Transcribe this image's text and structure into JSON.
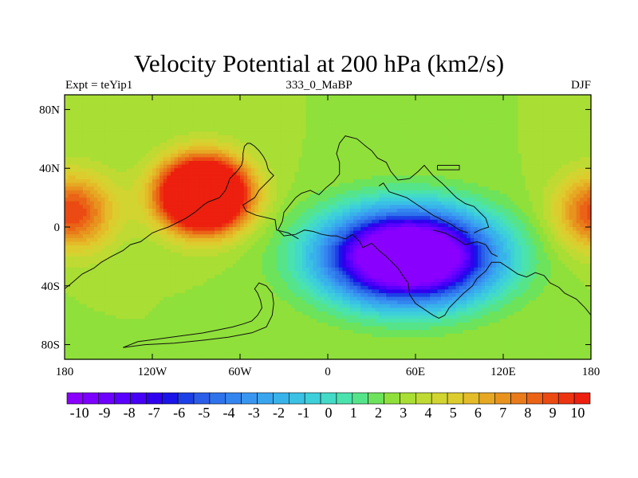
{
  "chart_data": {
    "type": "heatmap",
    "title": "Velocity Potential at 200 hPa (km2/s)",
    "left_string": "Expt = teYip1",
    "center_string": "333_0_MaBP",
    "right_string": "DJF",
    "xlim": [
      -180,
      180
    ],
    "ylim": [
      -90,
      90
    ],
    "x_ticks": [
      -180,
      -120,
      -60,
      0,
      60,
      120,
      180
    ],
    "x_tick_labels": [
      "180",
      "120W",
      "60W",
      "0",
      "60E",
      "120E",
      "180"
    ],
    "y_ticks": [
      80,
      40,
      0,
      -40,
      -80
    ],
    "y_tick_labels": [
      "80N",
      "40N",
      "0",
      "40S",
      "80S"
    ],
    "colorbar": {
      "min": -10.5,
      "max": 10.5,
      "step": 0.5,
      "labels": [
        "-10",
        "-9",
        "-8",
        "-7",
        "-6",
        "-5",
        "-4",
        "-3",
        "-2",
        "-1",
        "0",
        "1",
        "2",
        "3",
        "4",
        "5",
        "6",
        "7",
        "8",
        "9",
        "10"
      ],
      "colors": [
        "#8a00ff",
        "#7c00ff",
        "#6d00ff",
        "#5a00ff",
        "#4600f5",
        "#3000ee",
        "#1a14e8",
        "#1c3fe6",
        "#2b5ee8",
        "#2f73ec",
        "#3385ef",
        "#3996f0",
        "#39a5ef",
        "#38b3ea",
        "#3ac1e4",
        "#3dcfda",
        "#43dac8",
        "#4be3ad",
        "#56e48a",
        "#6ce35a",
        "#8fe03a",
        "#a9de34",
        "#bfda33",
        "#d2d431",
        "#ddcc2e",
        "#e4bb29",
        "#e6a823",
        "#e8931e",
        "#e97b1a",
        "#ea6316",
        "#eb4a12",
        "#ec3410",
        "#ed1f0e"
      ]
    },
    "fields": [
      {
        "name": "upper-tropospheric convergence maximum",
        "lon": -85,
        "lat": 22,
        "sigma_lon": 28,
        "sigma_lat": 23,
        "amplitude": 15
      },
      {
        "name": "upper-tropospheric divergence maximum",
        "lon": 55,
        "lat": -20,
        "sigma_lon": 55,
        "sigma_lat": 30,
        "amplitude": -15
      },
      {
        "name": "central pacific convergence lobe",
        "lon": -175,
        "lat": 10,
        "sigma_lon": 28,
        "sigma_lat": 25,
        "amplitude": 5
      }
    ],
    "coastlines": [
      {
        "name": "south america outline",
        "points": [
          [
            -20,
            -8
          ],
          [
            -27,
            -4
          ],
          [
            -35,
            -2
          ],
          [
            -36,
            5
          ],
          [
            -49,
            8
          ],
          [
            -56,
            11
          ],
          [
            -58,
            15
          ],
          [
            -50,
            20
          ],
          [
            -47,
            25
          ],
          [
            -40,
            32
          ],
          [
            -37,
            35
          ],
          [
            -40,
            38
          ],
          [
            -41,
            40
          ],
          [
            -42,
            44
          ],
          [
            -44,
            48
          ],
          [
            -47,
            52
          ],
          [
            -50,
            55
          ],
          [
            -53,
            57
          ],
          [
            -55,
            57
          ],
          [
            -57,
            55
          ],
          [
            -58,
            50
          ],
          [
            -58,
            46
          ],
          [
            -59,
            42
          ],
          [
            -62,
            38
          ],
          [
            -65,
            35
          ],
          [
            -67,
            33
          ],
          [
            -68,
            30
          ],
          [
            -70,
            25
          ],
          [
            -74,
            20
          ],
          [
            -82,
            17
          ],
          [
            -85,
            15
          ],
          [
            -91,
            10
          ],
          [
            -97,
            6
          ],
          [
            -103,
            3
          ],
          [
            -109,
            0
          ],
          [
            -115,
            -2
          ],
          [
            -120,
            -4
          ],
          [
            -124,
            -7
          ],
          [
            -128,
            -10
          ],
          [
            -135,
            -12
          ],
          [
            -140,
            -16
          ],
          [
            -148,
            -20
          ],
          [
            -155,
            -24
          ],
          [
            -160,
            -28
          ],
          [
            -168,
            -32
          ],
          [
            -175,
            -38
          ],
          [
            -180,
            -42
          ]
        ]
      },
      {
        "name": "antarctic shelf outline",
        "points": [
          [
            -140,
            -82
          ],
          [
            -130,
            -78
          ],
          [
            -115,
            -76
          ],
          [
            -100,
            -74
          ],
          [
            -85,
            -72
          ],
          [
            -75,
            -70
          ],
          [
            -65,
            -68
          ],
          [
            -58,
            -66
          ],
          [
            -52,
            -64
          ],
          [
            -48,
            -60
          ],
          [
            -45,
            -55
          ],
          [
            -46,
            -50
          ],
          [
            -48,
            -45
          ],
          [
            -50,
            -42
          ],
          [
            -47,
            -38
          ],
          [
            -42,
            -40
          ],
          [
            -38,
            -45
          ],
          [
            -37,
            -52
          ],
          [
            -38,
            -60
          ],
          [
            -42,
            -68
          ],
          [
            -52,
            -72
          ],
          [
            -68,
            -75
          ],
          [
            -85,
            -77
          ],
          [
            -105,
            -79
          ],
          [
            -125,
            -80
          ],
          [
            -140,
            -82
          ]
        ]
      },
      {
        "name": "africa outline",
        "points": [
          [
            -34,
            -2
          ],
          [
            -30,
            -6
          ],
          [
            -22,
            -5
          ],
          [
            -16,
            -2
          ],
          [
            -10,
            -3
          ],
          [
            -4,
            -5
          ],
          [
            2,
            -6
          ],
          [
            6,
            -6
          ],
          [
            12,
            -8
          ],
          [
            17,
            -5
          ],
          [
            22,
            -10
          ],
          [
            24,
            -14
          ],
          [
            30,
            -11
          ],
          [
            35,
            -16
          ],
          [
            40,
            -20
          ],
          [
            44,
            -24
          ],
          [
            48,
            -28
          ],
          [
            52,
            -34
          ],
          [
            55,
            -38
          ],
          [
            56,
            -46
          ],
          [
            60,
            -52
          ],
          [
            66,
            -56
          ],
          [
            72,
            -60
          ],
          [
            76,
            -62
          ],
          [
            80,
            -60
          ],
          [
            83,
            -55
          ],
          [
            88,
            -50
          ],
          [
            93,
            -45
          ],
          [
            99,
            -40
          ],
          [
            102,
            -35
          ],
          [
            108,
            -30
          ],
          [
            112,
            -24
          ],
          [
            118,
            -24
          ],
          [
            124,
            -28
          ],
          [
            130,
            -32
          ],
          [
            136,
            -34
          ],
          [
            142,
            -31
          ],
          [
            148,
            -33
          ],
          [
            152,
            -38
          ],
          [
            158,
            -41
          ],
          [
            162,
            -45
          ],
          [
            166,
            -47
          ],
          [
            170,
            -49
          ],
          [
            176,
            -55
          ],
          [
            180,
            -60
          ]
        ]
      },
      {
        "name": "europe asia outline",
        "points": [
          [
            -34,
            -2
          ],
          [
            -31,
            4
          ],
          [
            -30,
            10
          ],
          [
            -26,
            15
          ],
          [
            -22,
            20
          ],
          [
            -18,
            23
          ],
          [
            -12,
            25
          ],
          [
            -6,
            22
          ],
          [
            -1,
            27
          ],
          [
            4,
            31
          ],
          [
            8,
            36
          ],
          [
            8,
            44
          ],
          [
            6,
            50
          ],
          [
            8,
            57
          ],
          [
            12,
            62
          ],
          [
            20,
            60
          ],
          [
            26,
            55
          ],
          [
            30,
            52
          ],
          [
            34,
            47
          ],
          [
            40,
            44
          ],
          [
            43,
            38
          ],
          [
            48,
            32
          ],
          [
            56,
            33
          ],
          [
            62,
            38
          ],
          [
            66,
            42
          ],
          [
            72,
            35
          ],
          [
            78,
            30
          ],
          [
            82,
            26
          ],
          [
            88,
            20
          ],
          [
            94,
            16
          ],
          [
            100,
            14
          ],
          [
            104,
            10
          ],
          [
            108,
            6
          ],
          [
            110,
            0
          ],
          [
            104,
            -2
          ],
          [
            100,
            -4
          ]
        ]
      },
      {
        "name": "asia interior outline",
        "points": [
          [
            35,
            28
          ],
          [
            38,
            30
          ],
          [
            42,
            24
          ],
          [
            48,
            22
          ],
          [
            54,
            20
          ],
          [
            60,
            16
          ],
          [
            66,
            12
          ],
          [
            72,
            8
          ],
          [
            78,
            5
          ],
          [
            84,
            2
          ],
          [
            90,
            -2
          ],
          [
            96,
            -4
          ]
        ]
      },
      {
        "name": "eastern landmass outline",
        "points": [
          [
            72,
            -2
          ],
          [
            80,
            -4
          ],
          [
            88,
            -8
          ],
          [
            94,
            -12
          ],
          [
            102,
            -10
          ],
          [
            108,
            -12
          ],
          [
            112,
            -18
          ],
          [
            116,
            -20
          ]
        ]
      },
      {
        "name": "small island outline",
        "points": [
          [
            75,
            42
          ],
          [
            90,
            42
          ],
          [
            90,
            39
          ],
          [
            75,
            39
          ],
          [
            75,
            42
          ]
        ]
      }
    ]
  }
}
